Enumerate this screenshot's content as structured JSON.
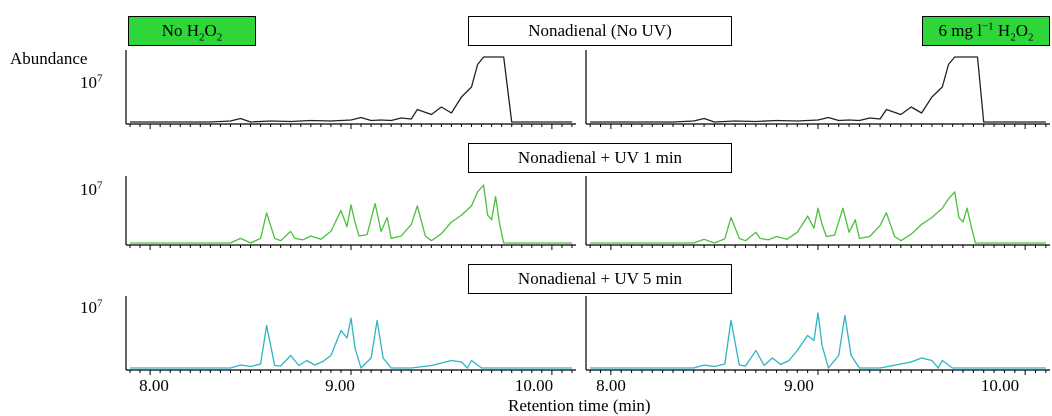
{
  "labels": {
    "no_h2o2": {
      "pre": "No H",
      "sub1": "2",
      "mid": "O",
      "sub2": "2"
    },
    "h2o2": {
      "pre": "6 mg l",
      "sup": "−1",
      "mid": " H",
      "sub1": "2",
      "mid2": "O",
      "sub2": "2"
    },
    "row_titles": [
      "Nonadienal (No UV)",
      "Nonadienal + UV 1 min",
      "Nonadienal + UV 5 min"
    ],
    "y_axis": "Abundance",
    "y_tick": {
      "base": "10",
      "exp": "7"
    },
    "x_axis": "Retention time (min)",
    "x_ticks": [
      "8.00",
      "9.00",
      "10.00"
    ]
  },
  "chart_data": {
    "type": "line",
    "xlabel": "Retention time (min)",
    "ylabel": "Abundance",
    "xlim": [
      7.88,
      10.12
    ],
    "ylim": [
      0,
      14000000
    ],
    "x_ticks": [
      8.0,
      9.0,
      10.0
    ],
    "columns": [
      "No H2O2",
      "6 mg l−1 H2O2"
    ],
    "colors": {
      "no_uv": "#222222",
      "uv1": "#4cbf3c",
      "uv5": "#2fb4c6",
      "highlight": "#2fd63a"
    },
    "panels": [
      {
        "row": "Nonadienal (No UV)",
        "column": "No H2O2",
        "color": "#222222",
        "x": [
          7.9,
          8.3,
          8.4,
          8.45,
          8.5,
          8.6,
          8.7,
          8.8,
          8.9,
          9.0,
          9.05,
          9.1,
          9.15,
          9.2,
          9.25,
          9.3,
          9.33,
          9.4,
          9.45,
          9.5,
          9.55,
          9.6,
          9.63,
          9.66,
          9.7,
          9.74,
          9.76,
          9.8,
          9.9,
          10.0,
          10.1
        ],
        "y": [
          0,
          0,
          200000,
          700000,
          0,
          200000,
          100000,
          300000,
          200000,
          400000,
          900000,
          300000,
          400000,
          300000,
          800000,
          600000,
          2500000,
          1500000,
          3000000,
          1800000,
          5000000,
          7000000,
          11500000,
          13000000,
          13000000,
          13000000,
          13000000,
          0,
          0,
          0,
          0
        ]
      },
      {
        "row": "Nonadienal (No UV)",
        "column": "6 mg l−1 H2O2",
        "color": "#222222",
        "x": [
          7.9,
          8.3,
          8.4,
          8.45,
          8.5,
          8.6,
          8.7,
          8.8,
          8.9,
          9.0,
          9.05,
          9.1,
          9.15,
          9.2,
          9.25,
          9.3,
          9.33,
          9.4,
          9.45,
          9.5,
          9.55,
          9.6,
          9.63,
          9.66,
          9.7,
          9.74,
          9.77,
          9.8,
          9.9,
          10.0,
          10.1
        ],
        "y": [
          0,
          0,
          200000,
          700000,
          0,
          200000,
          100000,
          300000,
          200000,
          400000,
          900000,
          300000,
          400000,
          300000,
          800000,
          600000,
          2500000,
          1500000,
          3000000,
          1800000,
          5000000,
          7000000,
          11500000,
          13000000,
          13000000,
          13000000,
          13000000,
          0,
          0,
          0,
          0
        ]
      },
      {
        "row": "Nonadienal + UV 1 min",
        "column": "No H2O2",
        "color": "#4cbf3c",
        "x": [
          7.9,
          8.4,
          8.45,
          8.5,
          8.55,
          8.58,
          8.62,
          8.65,
          8.7,
          8.72,
          8.76,
          8.8,
          8.85,
          8.9,
          8.95,
          8.98,
          9.0,
          9.02,
          9.04,
          9.08,
          9.12,
          9.15,
          9.18,
          9.2,
          9.25,
          9.3,
          9.33,
          9.37,
          9.4,
          9.45,
          9.5,
          9.55,
          9.6,
          9.63,
          9.66,
          9.68,
          9.7,
          9.72,
          9.74,
          9.76,
          9.8,
          9.9,
          10.0,
          10.1
        ],
        "y": [
          0,
          0,
          1000000,
          0,
          1000000,
          6500000,
          1000000,
          500000,
          2500000,
          1000000,
          700000,
          1500000,
          800000,
          2500000,
          7000000,
          3500000,
          8200000,
          4500000,
          1500000,
          1800000,
          8500000,
          2500000,
          5500000,
          1000000,
          1500000,
          4000000,
          8000000,
          1500000,
          500000,
          2000000,
          4500000,
          6000000,
          8000000,
          11000000,
          12500000,
          6000000,
          5000000,
          10000000,
          4000000,
          0,
          0,
          0,
          0,
          0
        ]
      },
      {
        "row": "Nonadienal + UV 1 min",
        "column": "6 mg l−1 H2O2",
        "color": "#4cbf3c",
        "x": [
          7.9,
          8.4,
          8.45,
          8.5,
          8.55,
          8.58,
          8.62,
          8.65,
          8.7,
          8.72,
          8.76,
          8.8,
          8.85,
          8.9,
          8.95,
          8.98,
          9.0,
          9.02,
          9.04,
          9.08,
          9.12,
          9.15,
          9.18,
          9.2,
          9.25,
          9.3,
          9.33,
          9.37,
          9.4,
          9.45,
          9.5,
          9.55,
          9.6,
          9.63,
          9.66,
          9.68,
          9.7,
          9.72,
          9.74,
          9.76,
          9.8,
          9.9,
          10.0,
          10.1
        ],
        "y": [
          0,
          0,
          800000,
          0,
          900000,
          5500000,
          1000000,
          500000,
          2300000,
          1000000,
          700000,
          1400000,
          800000,
          2300000,
          5800000,
          3200000,
          7500000,
          4000000,
          1400000,
          1700000,
          7500000,
          2300000,
          5000000,
          1000000,
          1400000,
          3800000,
          6500000,
          1400000,
          500000,
          1900000,
          4000000,
          5500000,
          7500000,
          9500000,
          11000000,
          5500000,
          4500000,
          7500000,
          3500000,
          0,
          0,
          0,
          0,
          0
        ]
      },
      {
        "row": "Nonadienal + UV 5 min",
        "column": "No H2O2",
        "color": "#2fb4c6",
        "x": [
          7.9,
          8.4,
          8.45,
          8.5,
          8.55,
          8.58,
          8.62,
          8.65,
          8.7,
          8.74,
          8.78,
          8.82,
          8.86,
          8.9,
          8.95,
          8.98,
          9.0,
          9.02,
          9.05,
          9.1,
          9.13,
          9.16,
          9.2,
          9.3,
          9.4,
          9.45,
          9.5,
          9.55,
          9.58,
          9.6,
          9.65,
          9.7,
          9.8,
          9.9,
          10.0,
          10.1
        ],
        "y": [
          0,
          0,
          600000,
          300000,
          800000,
          8500000,
          500000,
          400000,
          2500000,
          500000,
          1500000,
          600000,
          1300000,
          2500000,
          7500000,
          6000000,
          10000000,
          4000000,
          0,
          2000000,
          9500000,
          2000000,
          0,
          0,
          500000,
          1000000,
          1500000,
          1200000,
          0,
          1500000,
          0,
          0,
          0,
          0,
          0,
          0
        ]
      },
      {
        "row": "Nonadienal + UV 5 min",
        "column": "6 mg l−1 H2O2",
        "color": "#2fb4c6",
        "x": [
          7.9,
          8.4,
          8.45,
          8.5,
          8.55,
          8.58,
          8.62,
          8.65,
          8.7,
          8.74,
          8.78,
          8.82,
          8.86,
          8.9,
          8.95,
          8.98,
          9.0,
          9.02,
          9.05,
          9.1,
          9.13,
          9.16,
          9.2,
          9.3,
          9.4,
          9.45,
          9.5,
          9.55,
          9.58,
          9.6,
          9.65,
          9.7,
          9.8,
          9.9,
          10.0,
          10.1
        ],
        "y": [
          0,
          0,
          600000,
          300000,
          800000,
          9500000,
          600000,
          400000,
          3500000,
          500000,
          2000000,
          700000,
          1500000,
          3500000,
          6500000,
          5500000,
          11000000,
          4500000,
          0,
          2500000,
          10500000,
          2500000,
          0,
          0,
          800000,
          1200000,
          2000000,
          1500000,
          0,
          1500000,
          0,
          0,
          0,
          0,
          0,
          0
        ]
      }
    ]
  }
}
